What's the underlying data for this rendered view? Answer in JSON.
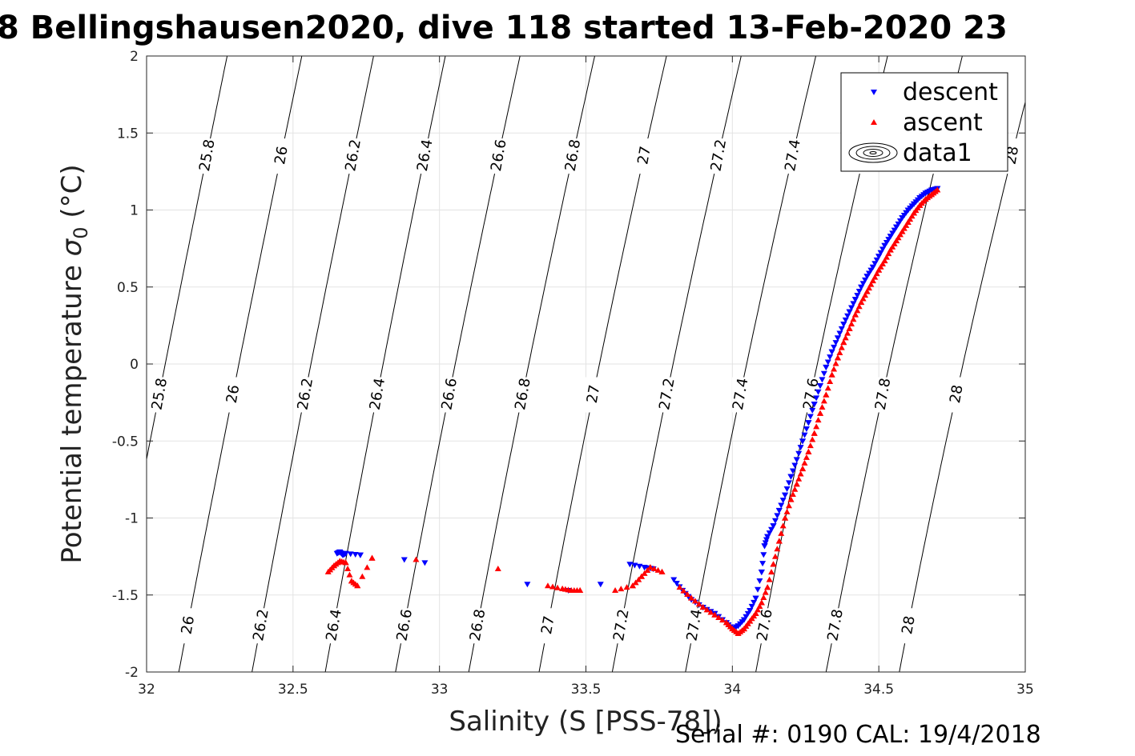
{
  "title": "8 Bellingshausen2020, dive 118 started 13-Feb-2020 23",
  "footer": "Serial #: 0190  CAL: 19/4/2018",
  "chart_data": {
    "type": "scatter",
    "xlabel": "Salinity (S [PSS-78])",
    "ylabel_main": "Potential temperature ",
    "ylabel_sigma": "σ",
    "ylabel_sub": "0",
    "ylabel_unit": " (°C)",
    "xlim": [
      32,
      35
    ],
    "ylim": [
      -2,
      2
    ],
    "xticks": [
      "32",
      "32.5",
      "33",
      "33.5",
      "34",
      "34.5",
      "35"
    ],
    "yticks": [
      "-2",
      "-1.5",
      "-1",
      "-0.5",
      "0",
      "0.5",
      "1",
      "1.5",
      "2"
    ],
    "grid": true,
    "legend_position": "top-right",
    "colors": {
      "descent": "#0000ff",
      "ascent": "#ff0000",
      "contour": "#000000"
    },
    "legend": [
      "descent",
      "ascent",
      "data1"
    ],
    "density_contours": {
      "levels": [
        25.8,
        26,
        26.2,
        26.4,
        26.6,
        26.8,
        27,
        27.2,
        27.4,
        27.6,
        27.8,
        28
      ],
      "labels": [
        "25.8",
        "26",
        "26.2",
        "26.4",
        "26.6",
        "26.8",
        "27",
        "27.2",
        "27.4",
        "27.6",
        "27.8",
        "28"
      ],
      "salinity_at_t_minus2": [
        32.07,
        32.32,
        32.57,
        32.82,
        33.06,
        33.31,
        33.55,
        33.8,
        34.05,
        34.29,
        34.53,
        34.78
      ],
      "salinity_at_t_plus2": [
        32.05,
        32.3,
        32.54,
        32.78,
        33.03,
        33.28,
        33.52,
        33.77,
        34.02,
        34.26,
        34.51,
        34.76
      ],
      "salinity_shift_per_degC": [
        0.015,
        0.02,
        0.025,
        0.03,
        0.035,
        0.04,
        0.045,
        0.05,
        0.055,
        0.06,
        0.065,
        0.07
      ]
    },
    "series": [
      {
        "name": "descent",
        "marker": "triangle-down",
        "x": [
          32.65,
          32.66,
          32.67,
          32.68,
          32.73,
          32.88,
          32.95,
          33.3,
          33.44,
          33.55,
          33.65,
          33.7,
          33.73,
          33.8,
          33.83,
          33.86,
          33.9,
          33.94,
          33.98,
          34.0,
          34.02,
          34.04,
          34.06,
          34.08,
          34.1,
          34.11,
          34.12,
          34.14,
          34.16,
          34.18,
          34.2,
          34.22,
          34.24,
          34.26,
          34.28,
          34.3,
          34.32,
          34.34,
          34.36,
          34.38,
          34.4,
          34.42,
          34.44,
          34.46,
          34.48,
          34.5,
          34.52,
          34.54,
          34.56,
          34.58,
          34.6,
          34.62,
          34.64,
          34.66,
          34.68,
          34.7
        ],
        "y": [
          -1.23,
          -1.22,
          -1.24,
          -1.23,
          -1.24,
          -1.27,
          -1.29,
          -1.43,
          -1.47,
          -1.43,
          -1.3,
          -1.32,
          -1.33,
          -1.4,
          -1.47,
          -1.53,
          -1.58,
          -1.62,
          -1.68,
          -1.72,
          -1.7,
          -1.66,
          -1.6,
          -1.52,
          -1.35,
          -1.18,
          -1.12,
          -1.05,
          -0.95,
          -0.85,
          -0.73,
          -0.62,
          -0.5,
          -0.38,
          -0.26,
          -0.14,
          -0.02,
          0.08,
          0.17,
          0.26,
          0.34,
          0.42,
          0.5,
          0.57,
          0.63,
          0.7,
          0.77,
          0.83,
          0.89,
          0.95,
          1.0,
          1.04,
          1.08,
          1.11,
          1.13,
          1.14
        ]
      },
      {
        "name": "ascent",
        "marker": "triangle-up",
        "x": [
          32.62,
          32.64,
          32.66,
          32.68,
          32.7,
          32.72,
          32.77,
          32.92,
          33.2,
          33.37,
          33.42,
          33.45,
          33.48,
          33.6,
          33.66,
          33.69,
          33.72,
          33.76,
          33.82,
          33.86,
          33.9,
          33.94,
          33.98,
          34.0,
          34.02,
          34.04,
          34.06,
          34.08,
          34.1,
          34.12,
          34.14,
          34.16,
          34.18,
          34.2,
          34.22,
          34.24,
          34.26,
          34.28,
          34.3,
          34.32,
          34.34,
          34.36,
          34.38,
          34.4,
          34.42,
          34.44,
          34.46,
          34.48,
          34.5,
          34.52,
          34.54,
          34.56,
          34.58,
          34.6,
          34.62,
          34.64,
          34.66,
          34.68,
          34.7
        ],
        "y": [
          -1.35,
          -1.31,
          -1.28,
          -1.29,
          -1.41,
          -1.44,
          -1.26,
          -1.27,
          -1.33,
          -1.44,
          -1.46,
          -1.47,
          -1.47,
          -1.47,
          -1.44,
          -1.38,
          -1.32,
          -1.35,
          -1.45,
          -1.52,
          -1.58,
          -1.63,
          -1.68,
          -1.72,
          -1.75,
          -1.72,
          -1.67,
          -1.62,
          -1.55,
          -1.45,
          -1.3,
          -1.15,
          -1.0,
          -0.88,
          -0.78,
          -0.68,
          -0.57,
          -0.45,
          -0.32,
          -0.2,
          -0.07,
          0.04,
          0.14,
          0.23,
          0.32,
          0.4,
          0.47,
          0.54,
          0.61,
          0.67,
          0.74,
          0.8,
          0.86,
          0.92,
          0.98,
          1.03,
          1.07,
          1.1,
          1.13
        ]
      }
    ]
  }
}
